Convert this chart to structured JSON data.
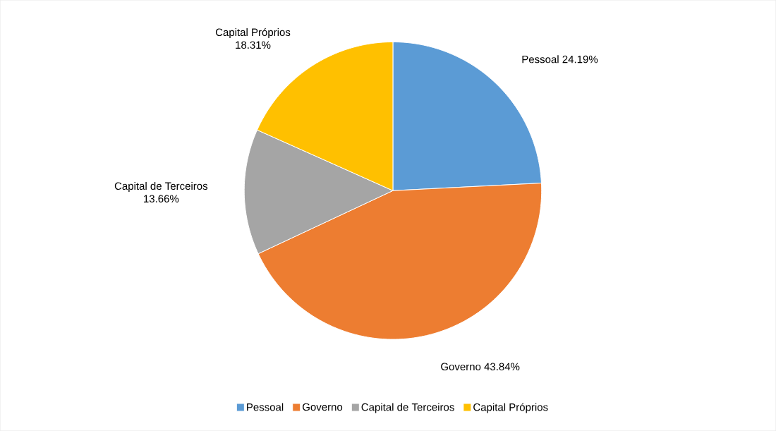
{
  "chart_data": {
    "type": "pie",
    "categories": [
      "Pessoal",
      "Governo",
      "Capital de Terceiros",
      "Capital Próprios"
    ],
    "values": [
      24.19,
      43.84,
      13.66,
      18.31
    ],
    "colors": [
      "#5b9bd5",
      "#ed7d31",
      "#a5a5a5",
      "#ffc000"
    ],
    "value_labels": [
      "24.19%",
      "43.84%",
      "13.66%",
      "18.31%"
    ],
    "legend": "bottom"
  }
}
